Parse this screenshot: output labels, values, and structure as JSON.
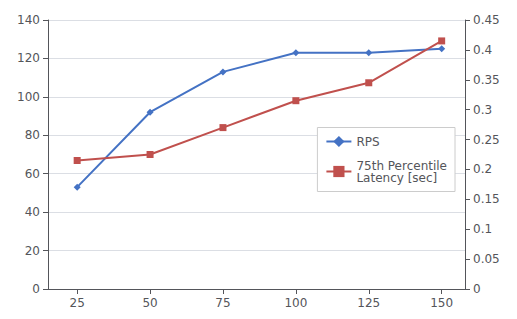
{
  "chart_data": {
    "type": "line",
    "x": [
      25,
      50,
      75,
      100,
      125,
      150
    ],
    "xlim": [
      15,
      158
    ],
    "xticks": [
      25,
      50,
      75,
      100,
      125,
      150
    ],
    "ylim": [
      0,
      140
    ],
    "yticks": [
      0,
      20,
      40,
      60,
      80,
      100,
      120,
      140
    ],
    "y2lim": [
      0,
      0.45
    ],
    "y2ticks": [
      0,
      0.05,
      0.1,
      0.15,
      0.2,
      0.25,
      0.3,
      0.35,
      0.4,
      0.45
    ],
    "grid": true,
    "legend": "right",
    "series": [
      {
        "name": "RPS",
        "color": "#4472C4",
        "marker": "diamond",
        "values": [
          53,
          92,
          113,
          123,
          123,
          125
        ]
      },
      {
        "name": "75th Percentile\nLatency [sec]",
        "color": "#C0504D",
        "marker": "square",
        "axis": "y2",
        "values": [
          0.215,
          0.225,
          0.27,
          0.315,
          0.345,
          0.415
        ]
      }
    ]
  }
}
